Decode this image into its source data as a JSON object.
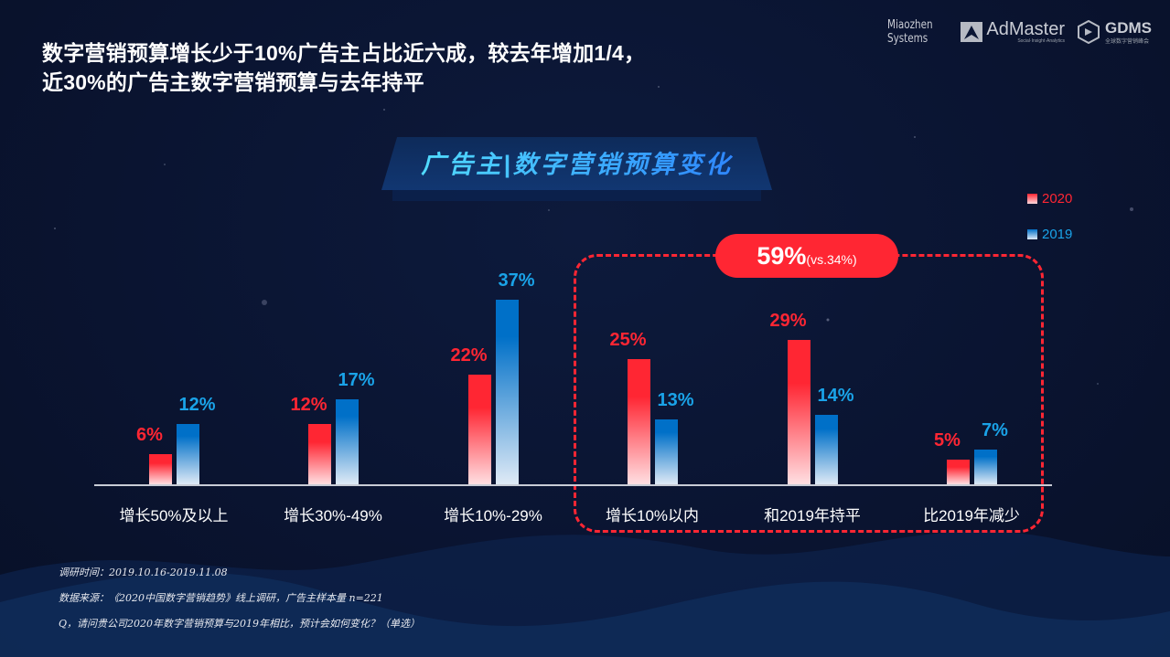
{
  "headline": {
    "line1": "数字营销预算增长少于10%广告主占比近六成，较去年增加1/4，",
    "line2": "近30%的广告主数字营销预算与去年持平"
  },
  "logos": {
    "miaozhen_line1": "Miaozhen",
    "miaozhen_line2": "Systems",
    "admaster_name": "AdMaster",
    "admaster_sub": "Social·Insight·Analytics",
    "gdms_name": "GDMS",
    "gdms_sub": "全球数字营销峰会"
  },
  "chart_title": "广告主|数字营销预算变化",
  "legend": [
    {
      "label": "2020",
      "color": "#ff2633"
    },
    {
      "label": "2019",
      "color": "#1aa3e8"
    }
  ],
  "highlight": {
    "main": "59%",
    "sub": "(vs.34%)"
  },
  "chart_data": {
    "type": "bar",
    "title": "广告主|数字营销预算变化",
    "categories": [
      "增长50%及以上",
      "增长30%-49%",
      "增长10%-29%",
      "增长10%以内",
      "和2019年持平",
      "比2019年减少"
    ],
    "series": [
      {
        "name": "2020",
        "values": [
          6,
          12,
          22,
          25,
          29,
          5
        ],
        "labels": [
          "6%",
          "12%",
          "22%",
          "25%",
          "29%",
          "5%"
        ],
        "color": "#ff2633"
      },
      {
        "name": "2019",
        "values": [
          12,
          17,
          37,
          13,
          14,
          7
        ],
        "labels": [
          "12%",
          "17%",
          "37%",
          "13%",
          "14%",
          "7%"
        ],
        "color": "#0070c8"
      }
    ],
    "annotation": "59%(vs.34%)",
    "annotation_covers": [
      "增长10%以内",
      "和2019年持平",
      "比2019年减少"
    ],
    "xlabel": "",
    "ylabel": "",
    "grid": false,
    "legend_position": "top-right",
    "unit": "%"
  },
  "footnotes": [
    "调研时间：2019.10.16-2019.11.08",
    "数据来源：《2020中国数字营销趋势》线上调研，广告主样本量 n=221",
    "Q，请问贵公司2020年数字营销预算与2019年相比，预计会如何变化？（单选）"
  ]
}
